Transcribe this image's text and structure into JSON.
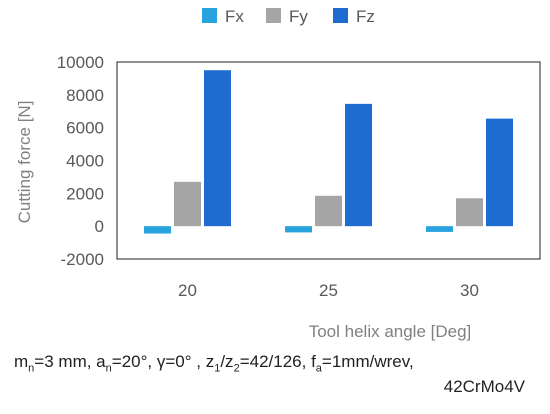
{
  "chart_data": {
    "type": "bar",
    "categories": [
      "20",
      "25",
      "30"
    ],
    "series": [
      {
        "name": "Fx",
        "values": [
          -450,
          -380,
          -350
        ],
        "color": "#29A3DD"
      },
      {
        "name": "Fy",
        "values": [
          2700,
          1850,
          1700
        ],
        "color": "#A5A5A5"
      },
      {
        "name": "Fz",
        "values": [
          9500,
          7450,
          6550
        ],
        "color": "#1F6CD1"
      }
    ],
    "ylabel": "Cutting force [N]",
    "xlabel": "Tool helix angle [Deg]",
    "ylim": [
      -2000,
      10000
    ],
    "yticks": [
      "-2000",
      "0",
      "2000",
      "4000",
      "6000",
      "8000",
      "10000"
    ],
    "grid": false,
    "legend_position": "top"
  },
  "caption": {
    "m": "m",
    "m_sub": "n",
    "m_val": "=3 mm,  ",
    "a": "a",
    "a_sub": "n",
    "a_val": "=20°, γ=0° , ",
    "z": "z",
    "z1_sub": "1",
    "z_slash": "/z",
    "z2_sub": "2",
    "z_val": "=42/126, ",
    "f": "f",
    "f_sub": "a",
    "f_val": "=1mm/wrev,",
    "material": "42CrMo4V"
  }
}
